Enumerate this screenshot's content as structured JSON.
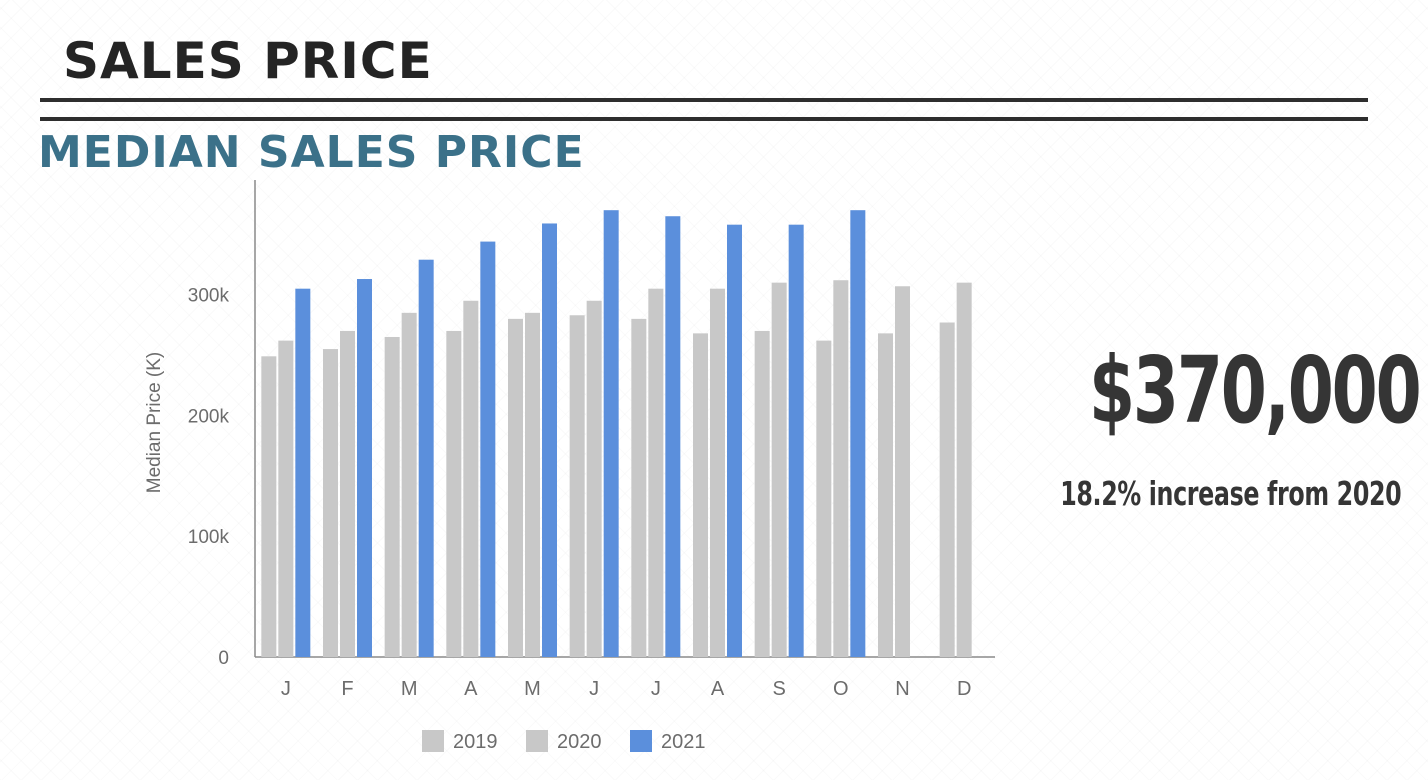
{
  "header": {
    "title": "SALES PRICE",
    "subtitle": "MEDIAN SALES PRICE"
  },
  "highlight": {
    "value": "$370,000",
    "caption": "18.2% increase from 2020"
  },
  "colors": {
    "series_2019": "#c8c8c8",
    "series_2020": "#c8c8c8",
    "series_2021": "#5b8fdc",
    "title": "#242424",
    "section_title": "#3b7189",
    "axis": "#8a8a8a"
  },
  "chart_data": {
    "type": "bar",
    "title": "",
    "xlabel": "",
    "ylabel": "Median Price (K)",
    "ylim": [
      0,
      395000
    ],
    "yticks": [
      0,
      100000,
      200000,
      300000
    ],
    "ytick_labels": [
      "0",
      "100k",
      "200k",
      "300k"
    ],
    "categories": [
      "J",
      "F",
      "M",
      "A",
      "M",
      "J",
      "J",
      "A",
      "S",
      "O",
      "N",
      "D"
    ],
    "series": [
      {
        "name": "2019",
        "values": [
          249000,
          255000,
          265000,
          270000,
          280000,
          283000,
          280000,
          268000,
          270000,
          262000,
          268000,
          277000
        ]
      },
      {
        "name": "2020",
        "values": [
          262000,
          270000,
          285000,
          295000,
          285000,
          295000,
          305000,
          305000,
          310000,
          312000,
          307000,
          310000
        ]
      },
      {
        "name": "2021",
        "values": [
          305000,
          313000,
          329000,
          344000,
          359000,
          370000,
          365000,
          358000,
          358000,
          370000,
          null,
          null
        ]
      }
    ],
    "grid": false,
    "legend": "bottom"
  }
}
